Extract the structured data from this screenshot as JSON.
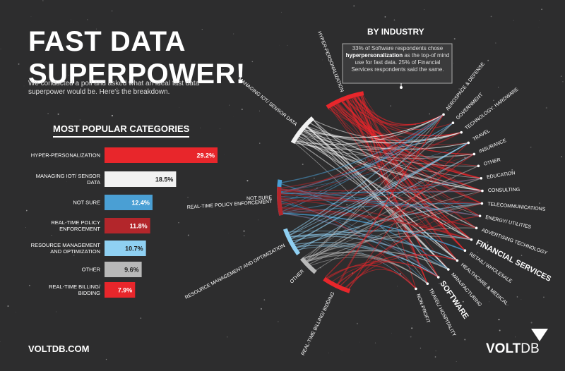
{
  "header": {
    "title": "FAST DATA SUPERPOWER!",
    "subtitle": "We conducted a poll and asked what an ideal fast data superpower would be. Here's the breakdown."
  },
  "chart_data": {
    "type": "bar",
    "orientation": "horizontal",
    "title": "MOST POPULAR CATEGORIES",
    "categories": [
      "HYPER-PERSONALIZATION",
      "MANAGING IOT/ SENSOR DATA",
      "NOT SURE",
      "REAL-TIME POLICY ENFORCEMENT",
      "RESOURCE MANAGEMENT AND OPTIMIZATION",
      "OTHER",
      "REAL-TIME BILLING/ BIDDING"
    ],
    "values": [
      29.2,
      18.5,
      12.4,
      11.8,
      10.7,
      9.6,
      7.9
    ],
    "value_labels": [
      "29.2%",
      "18.5%",
      "12.4%",
      "11.8%",
      "10.7%",
      "9.6%",
      "7.9%"
    ],
    "colors": [
      "#e8262b",
      "#f2f2f2",
      "#4a9fd4",
      "#b3262b",
      "#8fd0f2",
      "#b8b8b8",
      "#e8262b"
    ]
  },
  "industry": {
    "title": "BY INDUSTRY",
    "note": [
      "33% of Software respondents chose ",
      "hyperpersonalization",
      " as the top-of mind use for fast data. 25% of Financial Services respondents said the same."
    ],
    "industries": [
      {
        "label": "AEROSPACE & DEFENSE"
      },
      {
        "label": "GOVERNMENT"
      },
      {
        "label": "TECHNOLOGY: HARDWARE"
      },
      {
        "label": "TRAVEL"
      },
      {
        "label": "INSURANCE"
      },
      {
        "label": "OTHER"
      },
      {
        "label": "EDUCATION"
      },
      {
        "label": "CONSULTING"
      },
      {
        "label": "TELECOMMUNICATIONS"
      },
      {
        "label": "ENERGY/ UTILITIES"
      },
      {
        "label": "ADVERTISING TECHNOLOGY"
      },
      {
        "label": "FINANCIAL SERVICES",
        "emphasis": true
      },
      {
        "label": "RETAIL/ WHOLESALE"
      },
      {
        "label": "HEALTHCARE & MEDICAL"
      },
      {
        "label": "MANUFACTURING"
      },
      {
        "label": "SOFTWARE",
        "emphasis": true
      },
      {
        "label": "TRAVEL/ HOSPITALITY"
      },
      {
        "label": "NON-PROFIT"
      }
    ]
  },
  "footer": {
    "url": "VOLTDB.COM",
    "logo": [
      "VOLT",
      "DB"
    ]
  }
}
